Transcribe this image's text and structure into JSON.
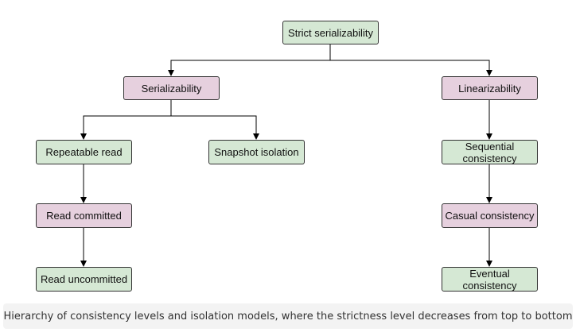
{
  "nodes": {
    "strict_serializability": "Strict serializability",
    "serializability": "Serializability",
    "linearizability": "Linearizability",
    "repeatable_read": "Repeatable read",
    "snapshot_isolation": "Snapshot isolation",
    "read_committed": "Read committed",
    "read_uncommitted": "Read uncommitted",
    "sequential_consistency": "Sequential consistency",
    "casual_consistency": "Casual consistency",
    "eventual_consistency": "Eventual consistency"
  },
  "caption": "Hierarchy of consistency levels and isolation models, where the strictness level decreases from top to bottom",
  "colors": {
    "green_fill": "#d5e8d4",
    "pink_fill": "#e6d0de",
    "stroke": "#333333",
    "caption_bg": "#f3f3f3"
  }
}
